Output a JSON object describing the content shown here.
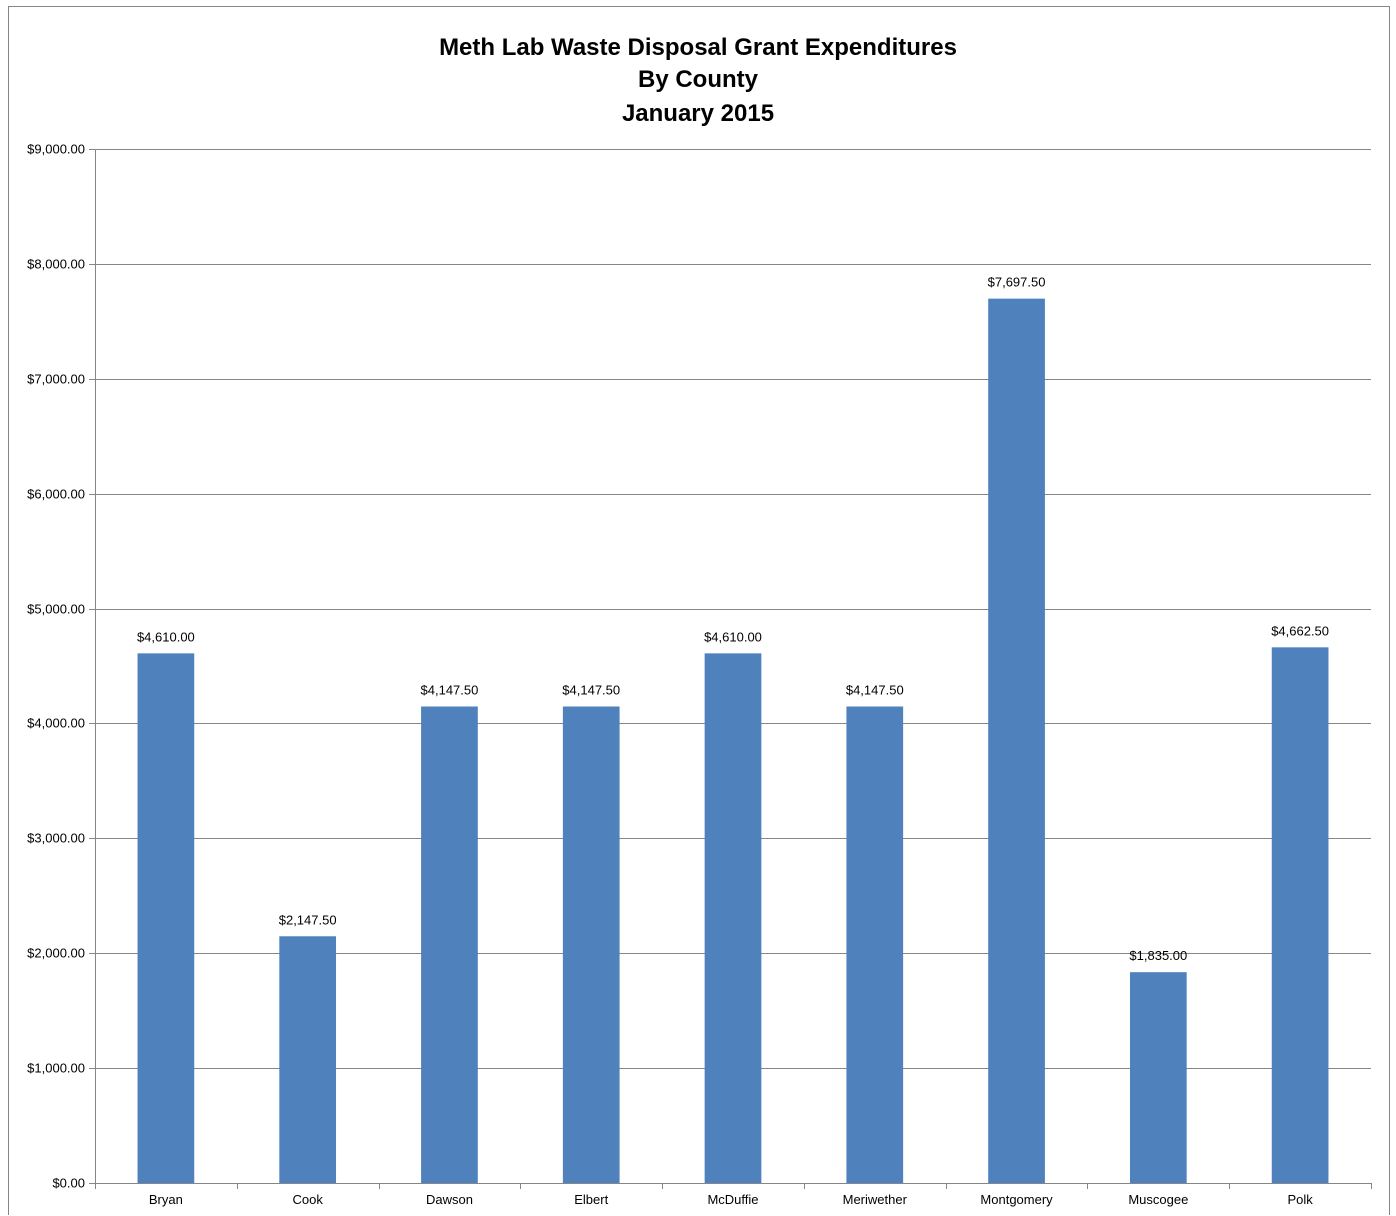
{
  "chart_data": {
    "type": "bar",
    "title_lines": [
      "Meth Lab Waste Disposal Grant Expenditures",
      "By County",
      "January 2015"
    ],
    "xlabel": "",
    "ylabel": "",
    "categories": [
      "Bryan",
      "Cook",
      "Dawson",
      "Elbert",
      "McDuffie",
      "Meriwether",
      "Montgomery",
      "Muscogee",
      "Polk"
    ],
    "values": [
      4610.0,
      2147.5,
      4147.5,
      4147.5,
      4610.0,
      4147.5,
      7697.5,
      1835.0,
      4662.5
    ],
    "data_labels": [
      "$4,610.00",
      "$2,147.50",
      "$4,147.50",
      "$4,147.50",
      "$4,610.00",
      "$4,147.50",
      "$7,697.50",
      "$1,835.00",
      "$4,662.50"
    ],
    "ylim": [
      0,
      9000
    ],
    "yticks": [
      0,
      1000,
      2000,
      3000,
      4000,
      5000,
      6000,
      7000,
      8000,
      9000
    ],
    "ytick_labels": [
      "$0.00",
      "$1,000.00",
      "$2,000.00",
      "$3,000.00",
      "$4,000.00",
      "$5,000.00",
      "$6,000.00",
      "$7,000.00",
      "$8,000.00",
      "$9,000.00"
    ],
    "grid": true,
    "legend": "none",
    "bar_color": "#4f81bd",
    "grid_color": "#868686"
  }
}
